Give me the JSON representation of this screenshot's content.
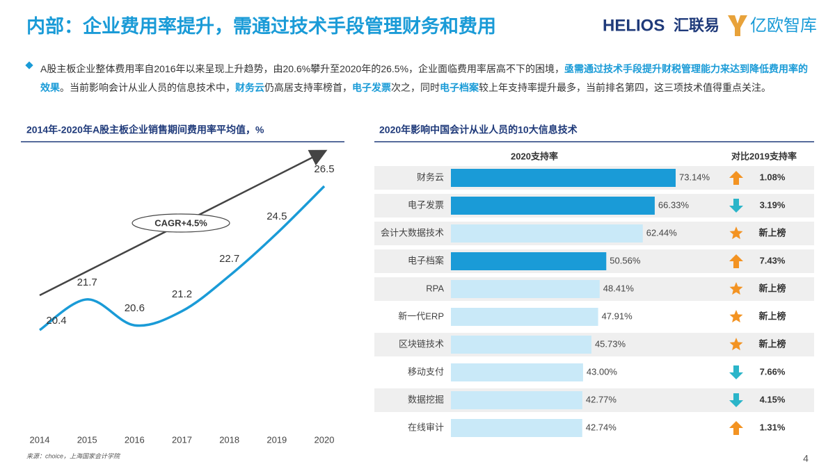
{
  "header": {
    "title": "内部：企业费用率提升，需通过技术手段管理财务和费用",
    "logos": [
      "HELIOS",
      "汇联易",
      "亿欧智库"
    ]
  },
  "intro": [
    {
      "text": "A股主板企业整体费用率自2016年以来呈现上升趋势，由20.6%攀升至2020年的26.5%，企业面临费用率居高不下的困境，",
      "emphasis": false
    },
    {
      "text": "亟需通过技术手段提升财税管理能力来达到降低费用率的效果",
      "emphasis": true
    },
    {
      "text": "。当前影响会计从业人员的信息技术中，",
      "emphasis": false
    },
    {
      "text": "财务云",
      "emphasis": true
    },
    {
      "text": "仍高居支持率榜首，",
      "emphasis": false
    },
    {
      "text": "电子发票",
      "emphasis": true
    },
    {
      "text": "次之，同时",
      "emphasis": false
    },
    {
      "text": "电子档案",
      "emphasis": true
    },
    {
      "text": "较上年支持率提升最多，当前排名第四，这三项技术值得重点关注。",
      "emphasis": false
    }
  ],
  "chart_data": [
    {
      "type": "line",
      "title": "2014年-2020年A股主板企业销售期间费用率平均值，%",
      "categories": [
        "2014",
        "2015",
        "2016",
        "2017",
        "2018",
        "2019",
        "2020"
      ],
      "series": [
        {
          "color": "#1a9bd7",
          "values": [
            20.4,
            21.7,
            20.6,
            21.2,
            22.7,
            24.5,
            26.5
          ]
        }
      ],
      "annotation": "CAGR+4.5%"
    },
    {
      "type": "hbar",
      "title": "2020年影响中国会计从业人员的10大信息技术",
      "value_header": "2020支持率",
      "change_header": "对比2019支持率",
      "categories": [
        "财务云",
        "电子发票",
        "会计大数据技术",
        "电子档案",
        "RPA",
        "新一代ERP",
        "区块链技术",
        "移动支付",
        "数据挖掘",
        "在线审计"
      ],
      "values": [
        73.14,
        66.33,
        62.44,
        50.56,
        48.41,
        47.91,
        45.73,
        43.0,
        42.77,
        42.74
      ],
      "value_labels": [
        "73.14%",
        "66.33%",
        "62.44%",
        "50.56%",
        "48.41%",
        "47.91%",
        "45.73%",
        "43.00%",
        "42.77%",
        "42.74%"
      ],
      "colors": [
        "#1a9bd7",
        "#1a9bd7",
        "#c9e9f8",
        "#1a9bd7",
        "#c9e9f8",
        "#c9e9f8",
        "#c9e9f8",
        "#c9e9f8",
        "#c9e9f8",
        "#c9e9f8"
      ],
      "changes": [
        "1.08%",
        "3.19%",
        "新上榜",
        "7.43%",
        "新上榜",
        "新上榜",
        "新上榜",
        "7.66%",
        "4.15%",
        "1.31%"
      ],
      "change_trends": [
        "up",
        "down",
        "new",
        "up",
        "new",
        "new",
        "new",
        "down",
        "down",
        "up"
      ]
    }
  ],
  "source": "来源：choice，上海国家会计学院",
  "page_number": "4"
}
